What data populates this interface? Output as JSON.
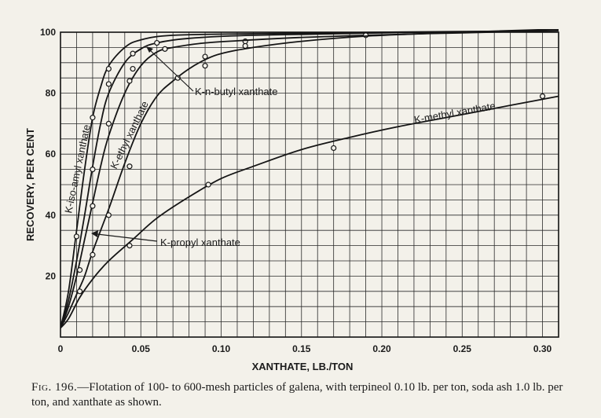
{
  "chart_data": {
    "type": "line",
    "title": "",
    "xlabel": "XANTHATE, LB./TON",
    "ylabel": "RECOVERY, PER CENT",
    "xlim": [
      0,
      0.31
    ],
    "ylim": [
      0,
      100
    ],
    "x_ticks": [
      0,
      0.05,
      0.1,
      0.15,
      0.2,
      0.25,
      0.3
    ],
    "x_tick_labels": [
      "0",
      "0.05",
      "0.10",
      "0.15",
      "0.20",
      "0.25",
      "0.30"
    ],
    "y_ticks": [
      20,
      40,
      60,
      80,
      100
    ],
    "y_tick_labels": [
      "20",
      "40",
      "60",
      "80",
      "100"
    ],
    "grid": true,
    "series": [
      {
        "name": "K-iso-amyl xanthate",
        "curve": [
          [
            0,
            3
          ],
          [
            0.005,
            15
          ],
          [
            0.01,
            35
          ],
          [
            0.015,
            55
          ],
          [
            0.02,
            72
          ],
          [
            0.025,
            82
          ],
          [
            0.03,
            89
          ],
          [
            0.04,
            95
          ],
          [
            0.05,
            97.5
          ],
          [
            0.07,
            99
          ],
          [
            0.12,
            99.5
          ],
          [
            0.2,
            100
          ],
          [
            0.31,
            100.5
          ]
        ],
        "points": [
          [
            0.01,
            33
          ],
          [
            0.02,
            72
          ],
          [
            0.03,
            88
          ]
        ]
      },
      {
        "name": "K-n-butyl xanthate",
        "curve": [
          [
            0,
            3
          ],
          [
            0.005,
            12
          ],
          [
            0.01,
            25
          ],
          [
            0.015,
            40
          ],
          [
            0.02,
            56
          ],
          [
            0.025,
            70
          ],
          [
            0.03,
            80
          ],
          [
            0.04,
            90
          ],
          [
            0.05,
            94.5
          ],
          [
            0.06,
            96.5
          ],
          [
            0.08,
            98
          ],
          [
            0.12,
            99
          ],
          [
            0.2,
            99.8
          ],
          [
            0.31,
            100.5
          ]
        ],
        "points": [
          [
            0.02,
            55
          ],
          [
            0.03,
            83
          ],
          [
            0.045,
            93
          ],
          [
            0.06,
            96.5
          ],
          [
            0.115,
            97
          ]
        ]
      },
      {
        "name": "K-ethyl xanthate",
        "curve": [
          [
            0,
            3
          ],
          [
            0.005,
            10
          ],
          [
            0.01,
            20
          ],
          [
            0.015,
            32
          ],
          [
            0.02,
            44
          ],
          [
            0.025,
            56
          ],
          [
            0.03,
            66
          ],
          [
            0.04,
            80
          ],
          [
            0.05,
            89
          ],
          [
            0.06,
            93.5
          ],
          [
            0.07,
            95
          ],
          [
            0.09,
            96.5
          ],
          [
            0.12,
            97.5
          ],
          [
            0.15,
            98.3
          ],
          [
            0.19,
            99
          ],
          [
            0.25,
            99.8
          ],
          [
            0.31,
            100.5
          ]
        ],
        "points": [
          [
            0.02,
            43
          ],
          [
            0.03,
            70
          ],
          [
            0.045,
            88
          ],
          [
            0.065,
            94.5
          ],
          [
            0.115,
            95.5
          ],
          [
            0.19,
            99
          ]
        ]
      },
      {
        "name": "K-propyl xanthate",
        "curve": [
          [
            0,
            3
          ],
          [
            0.005,
            8
          ],
          [
            0.01,
            14
          ],
          [
            0.015,
            20
          ],
          [
            0.02,
            28
          ],
          [
            0.03,
            42
          ],
          [
            0.04,
            57
          ],
          [
            0.05,
            70
          ],
          [
            0.06,
            79
          ],
          [
            0.07,
            84
          ],
          [
            0.08,
            88
          ],
          [
            0.09,
            91
          ],
          [
            0.1,
            93
          ],
          [
            0.12,
            95
          ],
          [
            0.15,
            97
          ],
          [
            0.19,
            98.7
          ],
          [
            0.25,
            100
          ],
          [
            0.31,
            101
          ]
        ],
        "points": [
          [
            0.012,
            22
          ],
          [
            0.02,
            27
          ],
          [
            0.03,
            40
          ],
          [
            0.043,
            56
          ],
          [
            0.043,
            84
          ],
          [
            0.073,
            85
          ],
          [
            0.09,
            89
          ],
          [
            0.09,
            92
          ]
        ]
      },
      {
        "name": "K-methyl xanthate",
        "curve": [
          [
            0,
            3
          ],
          [
            0.005,
            6
          ],
          [
            0.012,
            13
          ],
          [
            0.02,
            19
          ],
          [
            0.03,
            25
          ],
          [
            0.045,
            32
          ],
          [
            0.06,
            39
          ],
          [
            0.08,
            46
          ],
          [
            0.1,
            52
          ],
          [
            0.12,
            56
          ],
          [
            0.15,
            61.5
          ],
          [
            0.18,
            65.5
          ],
          [
            0.21,
            69
          ],
          [
            0.24,
            72
          ],
          [
            0.27,
            75
          ],
          [
            0.3,
            78
          ],
          [
            0.31,
            79
          ]
        ],
        "points": [
          [
            0.012,
            15
          ],
          [
            0.043,
            30
          ],
          [
            0.092,
            50
          ],
          [
            0.17,
            62
          ],
          [
            0.3,
            79
          ]
        ]
      }
    ],
    "annotations": [
      {
        "text": "K-iso-amyl xanthate",
        "series": "K-iso-amyl xanthate"
      },
      {
        "text": "K-ethyl xanthate",
        "series": "K-ethyl xanthate"
      },
      {
        "text": "K-n-butyl xanthate",
        "series": "K-n-butyl xanthate"
      },
      {
        "text": "K-propyl xanthate",
        "series": "K-propyl xanthate"
      },
      {
        "text": "K-methyl xanthate",
        "series": "K-methyl xanthate"
      }
    ]
  },
  "caption": {
    "fig_no": "Fig. 196.",
    "text": "—Flotation of 100- to 600-mesh particles of galena, with terpineol 0.10 lb. per ton, soda ash 1.0 lb. per ton, and xanthate as shown."
  }
}
